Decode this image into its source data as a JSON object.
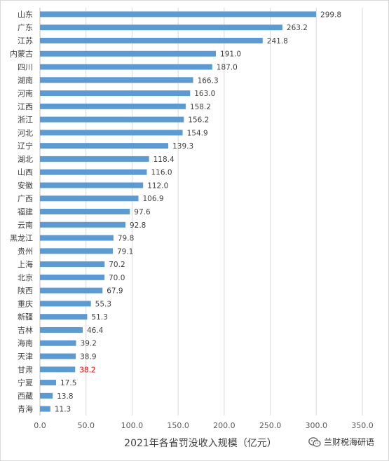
{
  "chart_data": {
    "type": "bar",
    "orientation": "horizontal",
    "xlabel": "2021年各省罚没收入规模（亿元）",
    "xlim": [
      0,
      350
    ],
    "xticks": [
      "0.0",
      "50.0",
      "100.0",
      "150.0",
      "200.0",
      "250.0",
      "300.0",
      "350.0"
    ],
    "grid": true,
    "bar_color": "#5B9BD5",
    "highlight_label_color": "#FF0000",
    "categories": [
      "山东",
      "广东",
      "江苏",
      "内蒙古",
      "四川",
      "湖南",
      "河南",
      "江西",
      "浙江",
      "河北",
      "辽宁",
      "湖北",
      "山西",
      "安徽",
      "广西",
      "福建",
      "云南",
      "黑龙江",
      "贵州",
      "上海",
      "北京",
      "陕西",
      "重庆",
      "新疆",
      "吉林",
      "海南",
      "天津",
      "甘肃",
      "宁夏",
      "西藏",
      "青海"
    ],
    "values": [
      299.8,
      263.2,
      241.8,
      191.0,
      187.0,
      166.3,
      163.0,
      158.2,
      156.2,
      154.9,
      139.3,
      118.4,
      116.0,
      112.0,
      106.9,
      97.6,
      92.8,
      79.8,
      79.1,
      70.2,
      70.0,
      67.9,
      55.3,
      51.3,
      46.4,
      39.2,
      38.9,
      38.2,
      17.5,
      13.8,
      11.3
    ],
    "value_labels": [
      "299.8",
      "263.2",
      "241.8",
      "191.0",
      "187.0",
      "166.3",
      "163.0",
      "158.2",
      "156.2",
      "154.9",
      "139.3",
      "118.4",
      "116.0",
      "112.0",
      "106.9",
      "97.6",
      "92.8",
      "79.8",
      "79.1",
      "70.2",
      "70.0",
      "67.9",
      "55.3",
      "51.3",
      "46.4",
      "39.2",
      "38.9",
      "38.2",
      "17.5",
      "13.8",
      "11.3"
    ],
    "highlight_category": "甘肃"
  },
  "watermark": {
    "text": "兰财税海研语",
    "icon": "wechat-icon"
  }
}
